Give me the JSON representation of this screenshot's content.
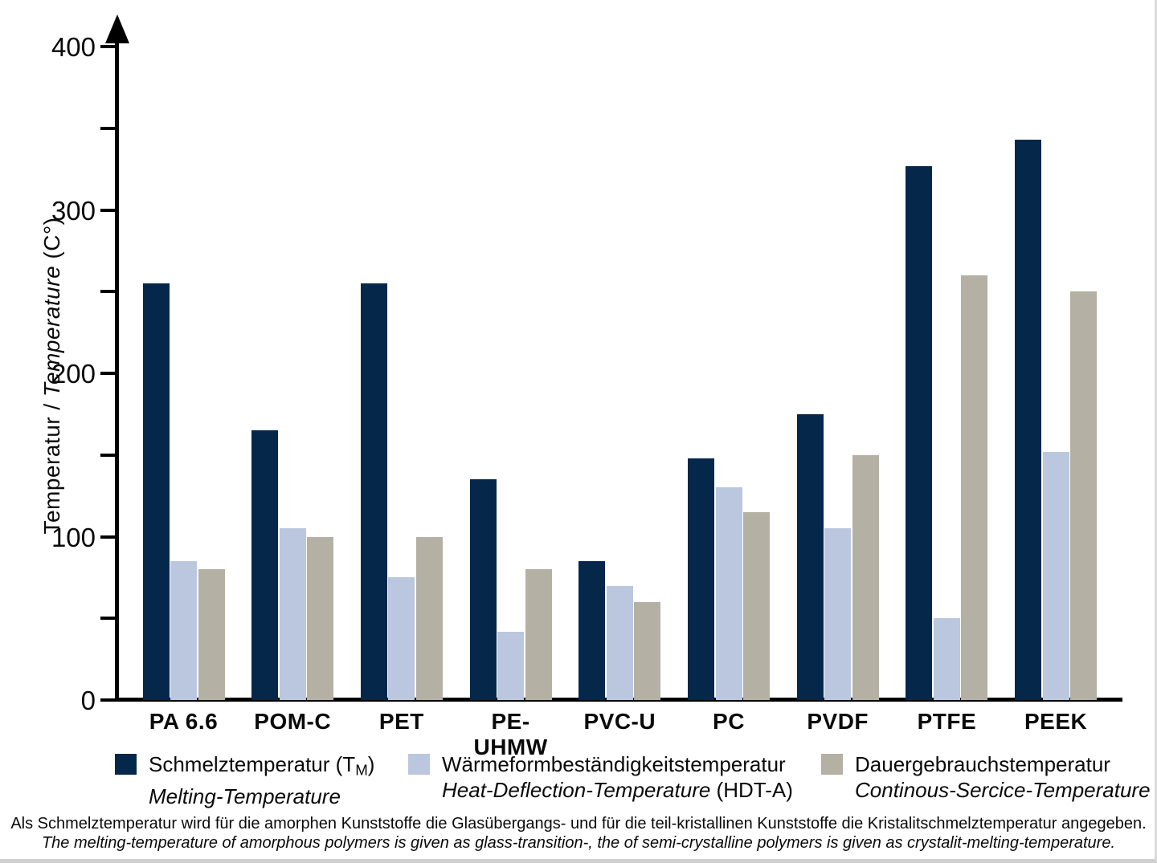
{
  "chart_data": {
    "type": "bar",
    "title": "",
    "grid": false,
    "legend_position": "bottom",
    "categories": [
      "PA 6.6",
      "POM-C",
      "PET",
      "PE-UHMW",
      "PVC-U",
      "PC",
      "PVDF",
      "PTFE",
      "PEEK"
    ],
    "y_axis": {
      "label_de": "Temperatur / ",
      "label_en": "Temperature",
      "label_unit": " (C°)",
      "min": 0,
      "max": 400,
      "tick_step": 50,
      "label_step": 100,
      "tick_labels": [
        "0",
        "100",
        "200",
        "300",
        "400"
      ]
    },
    "series": [
      {
        "name": "Schmelztemperatur (TM) / Melting-Temperature",
        "legend_de_pre": "Schmelztemperatur (T",
        "legend_de_sub": "M",
        "legend_de_post": ")",
        "legend_en": "Melting-Temperature",
        "color": "#04274a",
        "values": [
          255,
          165,
          255,
          135,
          85,
          148,
          175,
          327,
          343
        ]
      },
      {
        "name": "Wärmeformbeständigkeitstemperatur / Heat-Deflection-Temperature (HDT-A)",
        "legend_de": "Wärmeformbeständigkeitstemperatur",
        "legend_en": "Heat-Deflection-Temperature",
        "legend_en_suffix": " (HDT-A)",
        "color": "#bac7de",
        "values": [
          85,
          105,
          75,
          42,
          70,
          130,
          105,
          50,
          152
        ]
      },
      {
        "name": "Dauergebrauchstemperatur / Continous-Sercice-Temperature",
        "legend_de": "Dauergebrauchstemperatur",
        "legend_en": "Continous-Sercice-Temperature",
        "color": "#b5b0a4",
        "values": [
          80,
          100,
          100,
          80,
          60,
          115,
          150,
          260,
          250
        ]
      }
    ]
  },
  "footnote": {
    "line1_de": "Als Schmelztemperatur wird für die amorphen Kunststoffe die Glasübergangs- und für die teil-kristallinen Kunststoffe die Kristalitschmelztemperatur angegeben.",
    "line2_en": "The melting-temperature of amorphous polymers is given as glass-transition-, the of semi-crystalline polymers is given as crystalit-melting-temperature."
  }
}
